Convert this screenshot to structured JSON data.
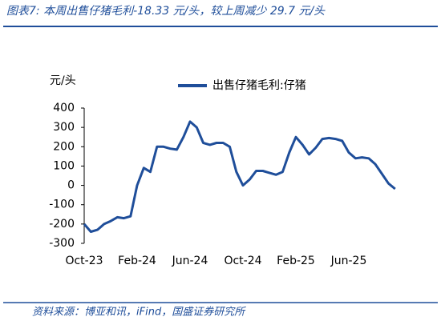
{
  "chart_data": {
    "type": "line",
    "title": "图表7:  本周出售仔猪毛利-18.33 元/头，较上周减少 29.7 元/头",
    "y_label": "元/头",
    "source": "资料来源：博亚和讯，iFind，国盛证券研究所",
    "categories": [
      "Oct-23",
      null,
      null,
      null,
      null,
      null,
      null,
      null,
      "Feb-24",
      null,
      null,
      null,
      null,
      null,
      null,
      null,
      "Jun-24",
      null,
      null,
      null,
      null,
      null,
      null,
      null,
      "Oct-24",
      null,
      null,
      null,
      null,
      null,
      null,
      null,
      "Feb-25",
      null,
      null,
      null,
      null,
      null,
      null,
      null,
      "Jun-25",
      null,
      null,
      null,
      null,
      null,
      null,
      null
    ],
    "series": [
      {
        "name": "出售仔猪毛利:仔猪",
        "color": "#1f4e9a",
        "values": [
          -200,
          -240,
          -230,
          -200,
          -185,
          -165,
          -170,
          -160,
          0,
          90,
          70,
          200,
          200,
          190,
          185,
          250,
          330,
          300,
          220,
          210,
          220,
          220,
          200,
          70,
          0,
          30,
          75,
          75,
          65,
          55,
          70,
          170,
          250,
          210,
          160,
          195,
          240,
          245,
          240,
          230,
          170,
          140,
          145,
          140,
          110,
          60,
          10,
          -18.33
        ]
      }
    ],
    "ylim": [
      -300,
      400
    ],
    "yticks": [
      -300,
      -200,
      -100,
      0,
      100,
      200,
      300,
      400
    ],
    "legend": "top"
  }
}
